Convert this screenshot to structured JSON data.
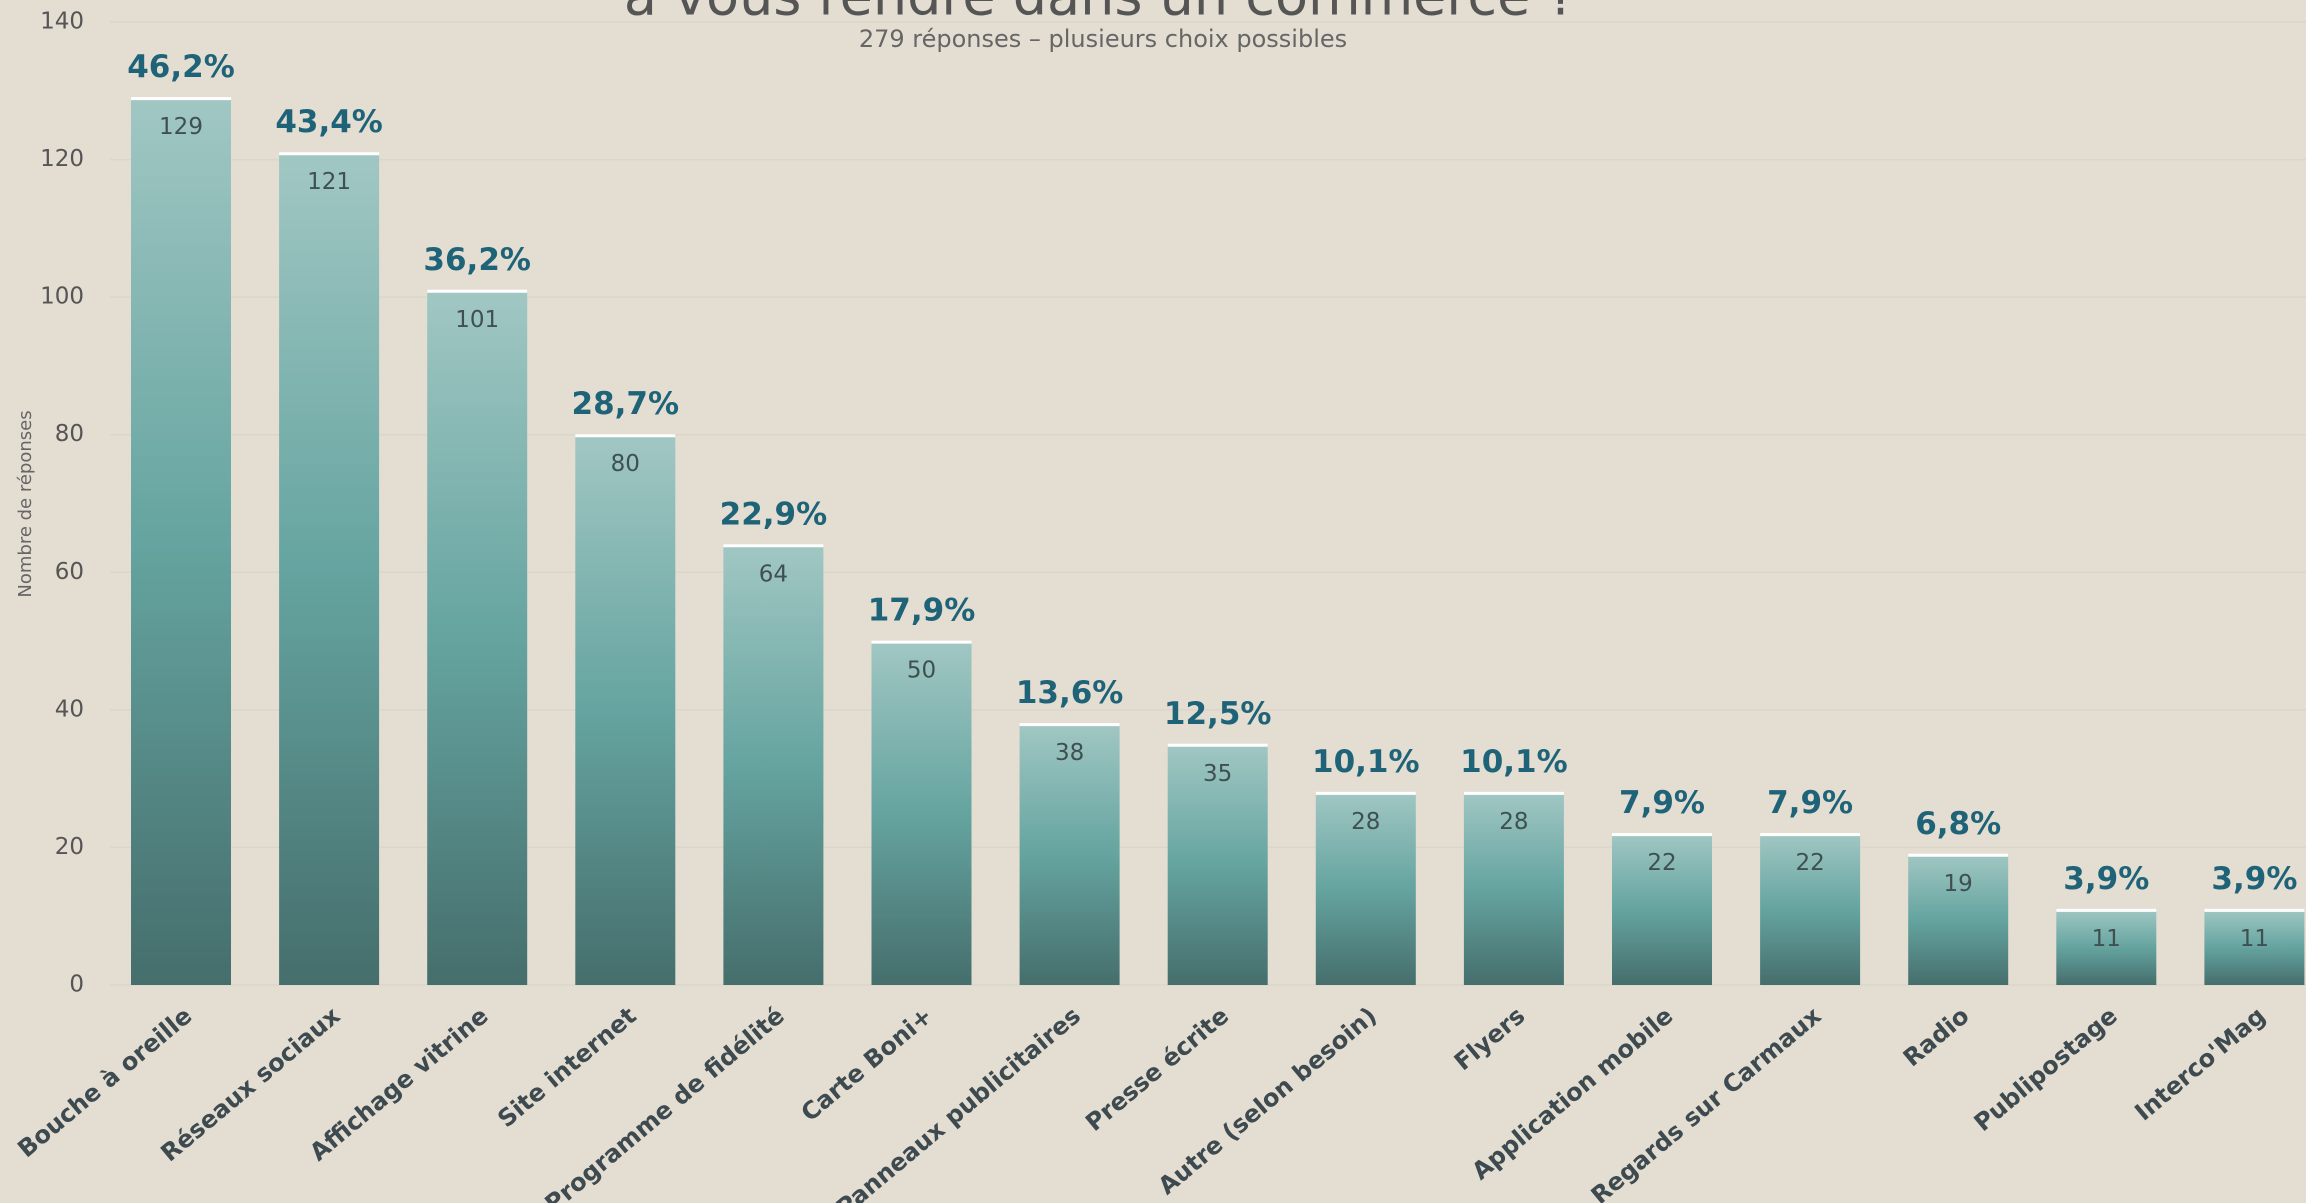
{
  "chart_data": {
    "type": "bar",
    "title": "à vous rendre dans un commerce ?",
    "subtitle": "279 réponses – plusieurs choix possibles",
    "y_label": "Nombre de réponses",
    "categories": [
      "Bouche à oreille",
      "Réseaux sociaux",
      "Affichage vitrine",
      "Site internet",
      "Programme de fidélité",
      "Carte Boni+",
      "Panneaux publicitaires",
      "Presse écrite",
      "Autre (selon besoin)",
      "Flyers",
      "Application mobile",
      "Regards sur Carmaux",
      "Radio",
      "Publipostage",
      "Interco'Mag"
    ],
    "values": [
      129,
      121,
      101,
      80,
      64,
      50,
      38,
      35,
      28,
      28,
      22,
      22,
      19,
      11,
      11
    ],
    "percent_values": [
      46.2,
      43.4,
      36.2,
      28.7,
      22.9,
      17.9,
      13.6,
      12.5,
      10.1,
      10.1,
      7.9,
      7.9,
      6.8,
      3.9,
      3.9
    ],
    "percent_labels": [
      "46,2%",
      "43,4%",
      "36,2%",
      "28,7%",
      "22,9%",
      "17,9%",
      "13,6%",
      "12,5%",
      "10,1%",
      "10,1%",
      "7,9%",
      "7,9%",
      "6,8%",
      "3,9%",
      "3,9%"
    ],
    "ylim": [
      0,
      140
    ],
    "yticks": [
      0,
      20,
      40,
      60,
      80,
      100,
      120,
      140
    ],
    "grid": true
  }
}
